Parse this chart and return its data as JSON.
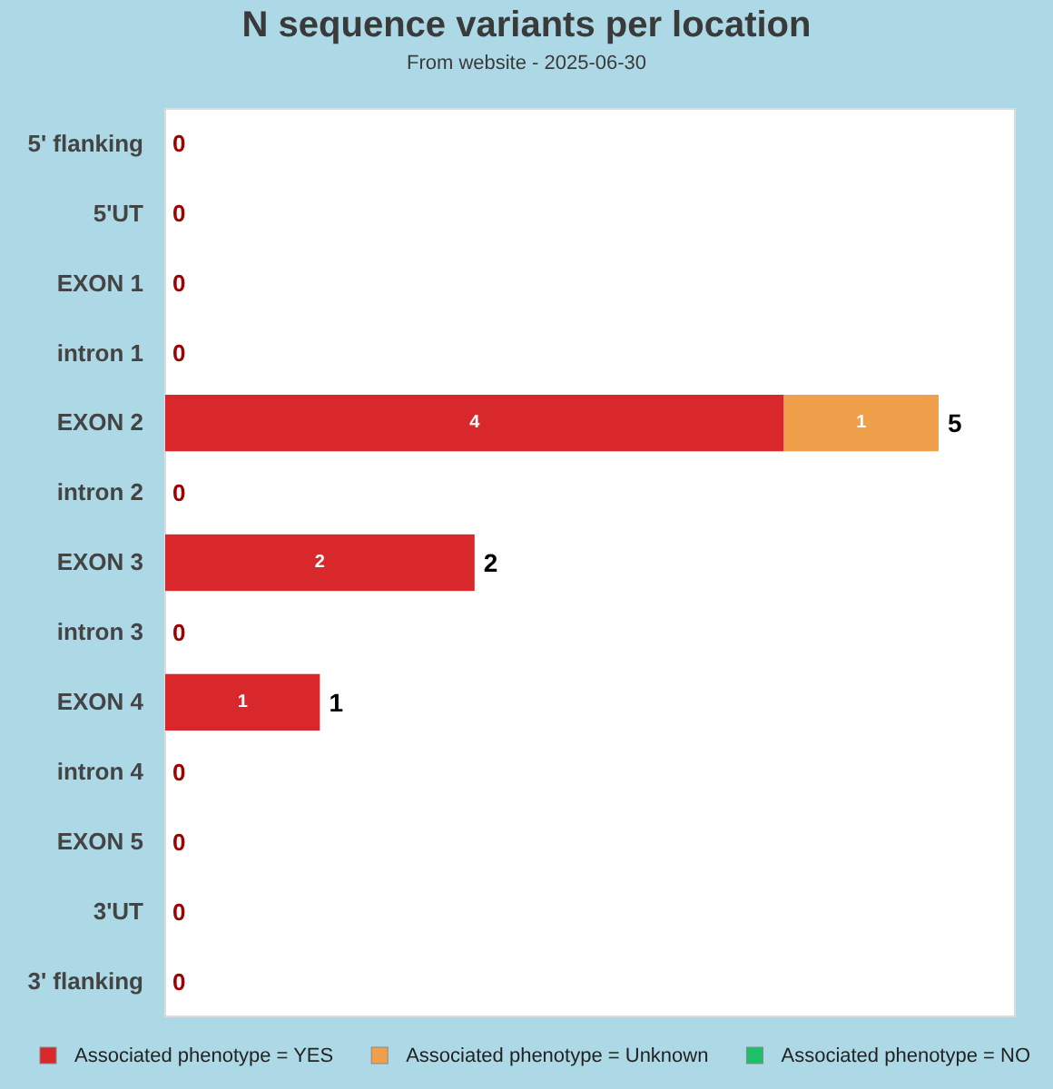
{
  "chart_data": {
    "type": "bar",
    "orientation": "horizontal",
    "stacked": true,
    "title": "N sequence variants per location",
    "subtitle": "From website - 2025-06-30",
    "categories": [
      "5' flanking",
      "5'UT",
      "EXON 1",
      "intron 1",
      "EXON 2",
      "intron 2",
      "EXON 3",
      "intron 3",
      "EXON 4",
      "intron 4",
      "EXON 5",
      "3'UT",
      "3' flanking"
    ],
    "series": [
      {
        "name": "Associated phenotype = YES",
        "color": "#d9282b",
        "values": [
          0,
          0,
          0,
          0,
          4,
          0,
          2,
          0,
          1,
          0,
          0,
          0,
          0
        ],
        "value_labels": [
          null,
          null,
          null,
          null,
          "4",
          null,
          "2",
          null,
          "1",
          null,
          null,
          null,
          null
        ]
      },
      {
        "name": "Associated phenotype = Unknown",
        "color": "#f0a04b",
        "values": [
          0,
          0,
          0,
          0,
          1,
          0,
          0,
          0,
          0,
          0,
          0,
          0,
          0
        ],
        "value_labels": [
          null,
          null,
          null,
          null,
          "1",
          null,
          null,
          null,
          null,
          null,
          null,
          null,
          null
        ]
      },
      {
        "name": "Associated phenotype = NO",
        "color": "#1dbf68",
        "values": [
          0,
          0,
          0,
          0,
          0,
          0,
          0,
          0,
          0,
          0,
          0,
          0,
          0
        ]
      }
    ],
    "totals": [
      "0",
      "0",
      "0",
      "0",
      "5",
      "0",
      "2",
      "0",
      "1",
      "0",
      "0",
      "0",
      "0"
    ],
    "legend": "bottom"
  }
}
